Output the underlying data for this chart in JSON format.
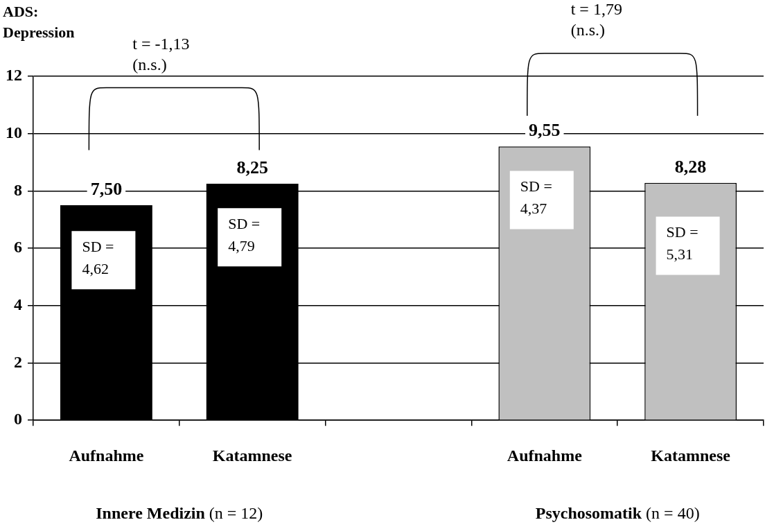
{
  "chart_data": {
    "type": "bar",
    "title": "ADS: Depression",
    "categories": [
      "Aufnahme",
      "Katamnese",
      null,
      "Aufnahme",
      "Katamnese"
    ],
    "values": [
      7.5,
      8.25,
      null,
      9.55,
      8.28
    ],
    "colors": [
      "#000000",
      "#000000",
      "#000000",
      "#c0c0c0",
      "#c0c0c0"
    ],
    "value_labels": [
      "7,50",
      "8,25",
      null,
      "9,55",
      "8,28"
    ],
    "ylim": [
      0,
      12
    ],
    "yticks": [
      0,
      2,
      4,
      6,
      8,
      10,
      12
    ],
    "grid": "y",
    "annotations": [
      "t = -1,13 (n.s.)",
      "t = 1,79 (n.s.)",
      "SD = 4,62",
      "SD = 4,79",
      "SD = 4,37",
      "SD = 5,31",
      "Innere Medizin (n = 12)",
      "Psychosomatik (n = 40)"
    ]
  }
}
